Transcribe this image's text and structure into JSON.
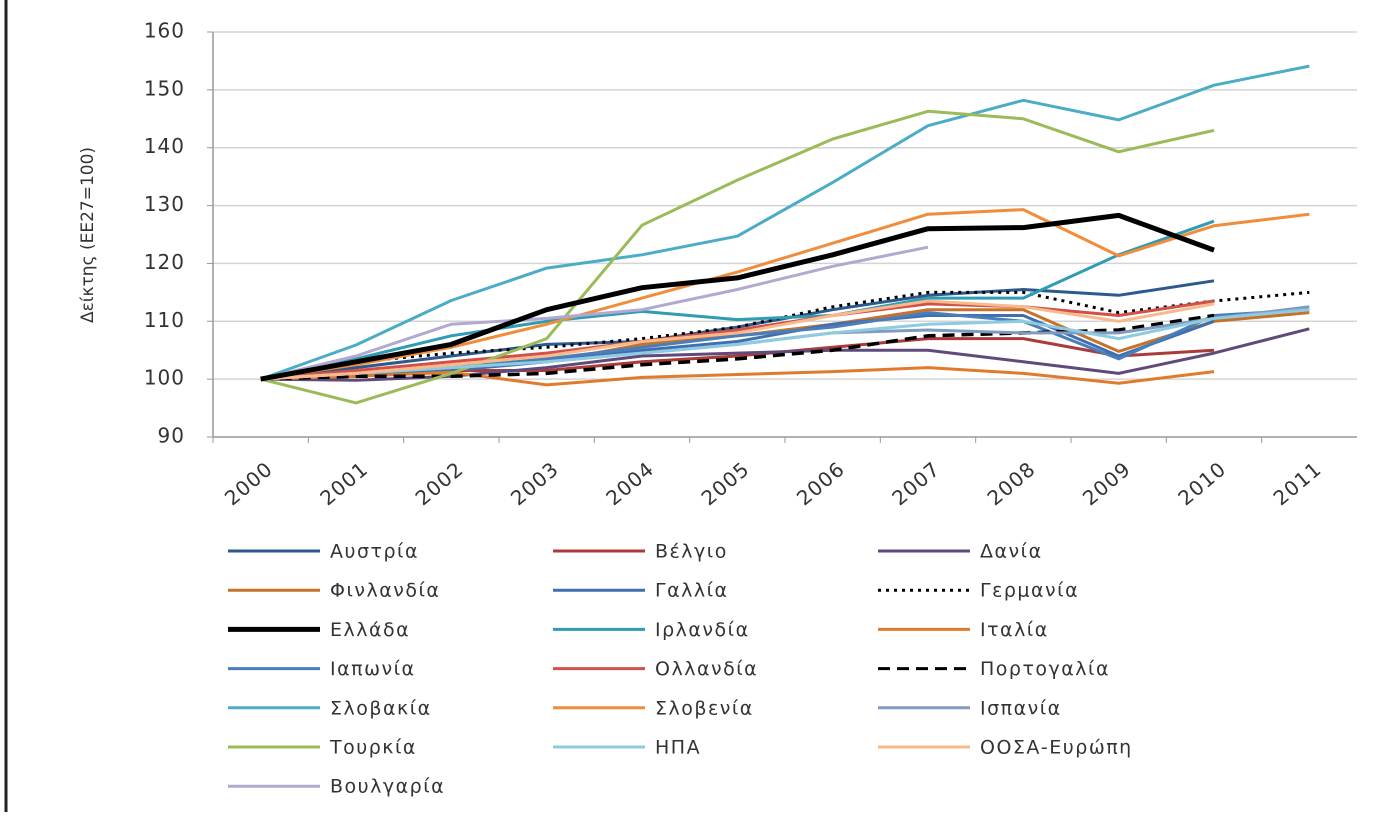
{
  "chart_data": {
    "type": "line",
    "y_label": "Δείκτης (ΕΕ27=100)",
    "categories": [
      "2000",
      "2001",
      "2002",
      "2003",
      "2004",
      "2005",
      "2006",
      "2007",
      "2008",
      "2009",
      "2010",
      "2011"
    ],
    "ylim": [
      90,
      160
    ],
    "yticks": [
      90,
      100,
      110,
      120,
      130,
      140,
      150,
      160
    ],
    "series": [
      {
        "name": "Αυστρία",
        "color": "#2c5a8c",
        "values": [
          100,
          102,
          104,
          106,
          106.5,
          109,
          112,
          114.5,
          115.5,
          114.5,
          117,
          null
        ]
      },
      {
        "name": "Βέλγιο",
        "color": "#a93b38",
        "values": [
          100,
          101,
          101.5,
          101.5,
          103,
          104,
          105.5,
          107,
          107,
          104,
          105,
          null
        ]
      },
      {
        "name": "Δανία",
        "color": "#5f4a7b",
        "values": [
          100,
          99.8,
          100.5,
          102,
          104,
          104.5,
          105,
          105,
          103,
          101,
          104.5,
          108.7
        ]
      },
      {
        "name": "Φινλανδία",
        "color": "#c6722a",
        "values": [
          100,
          101,
          102,
          103,
          106,
          107.5,
          109.5,
          112,
          112,
          104.8,
          110,
          111.5
        ]
      },
      {
        "name": "Γαλλία",
        "color": "#3f6fb0",
        "values": [
          100,
          100.5,
          101.5,
          103,
          105,
          106.5,
          109.5,
          111,
          111,
          104,
          110,
          null
        ]
      },
      {
        "name": "Γερμανία",
        "color": "#000000",
        "style": "dotted",
        "values": [
          100,
          103,
          104.5,
          105.5,
          107,
          109,
          112.5,
          115,
          115,
          111.5,
          113.5,
          115
        ]
      },
      {
        "name": "Ελλάδα",
        "color": "#000000",
        "style": "bold",
        "values": [
          100,
          103,
          106,
          112,
          115.8,
          117.5,
          121.5,
          126,
          126.2,
          128.3,
          122.3,
          null
        ]
      },
      {
        "name": "Ιρλανδία",
        "color": "#2f9cb4",
        "values": [
          100,
          103.5,
          107.5,
          110,
          111.7,
          110.3,
          111,
          114,
          114,
          121.5,
          127.3,
          null
        ]
      },
      {
        "name": "Ιταλία",
        "color": "#e07b2e",
        "values": [
          100,
          100.5,
          101.2,
          99,
          100.3,
          100.8,
          101.3,
          102,
          101,
          99.3,
          101.3,
          null
        ]
      },
      {
        "name": "Ιαπωνία",
        "color": "#4a7ebb",
        "values": [
          100,
          101,
          102,
          103.5,
          105.5,
          107.5,
          109,
          111.5,
          110,
          103.5,
          111,
          112
        ]
      },
      {
        "name": "Ολλανδία",
        "color": "#d0504a",
        "values": [
          100,
          101.5,
          103,
          104.5,
          106.5,
          108.5,
          111,
          113,
          112.5,
          111,
          113.5,
          null
        ]
      },
      {
        "name": "Πορτογαλία",
        "color": "#000000",
        "style": "dashed",
        "values": [
          100,
          100.5,
          100.5,
          101,
          102.5,
          103.5,
          105,
          107.5,
          108,
          108.5,
          111,
          null
        ]
      },
      {
        "name": "Σλοβακία",
        "color": "#4bacc6",
        "values": [
          100,
          105.9,
          113.6,
          119.2,
          121.5,
          124.7,
          134,
          143.8,
          148.2,
          144.8,
          150.8,
          154.1
        ]
      },
      {
        "name": "Σλοβενία",
        "color": "#f08c3a",
        "values": [
          100,
          102.5,
          105.5,
          109.5,
          114,
          118.5,
          123.5,
          128.5,
          129.3,
          121.3,
          126.5,
          128.5
        ]
      },
      {
        "name": "Ισπανία",
        "color": "#7f9cc0",
        "values": [
          100,
          101,
          102,
          103,
          104.5,
          106,
          108,
          108.5,
          108,
          108,
          110.5,
          112.5
        ]
      },
      {
        "name": "Τουρκία",
        "color": "#9bbb59",
        "values": [
          100,
          95.9,
          101,
          107,
          126.6,
          134.4,
          141.5,
          146.3,
          145,
          139.3,
          143,
          null
        ]
      },
      {
        "name": "ΗΠΑ",
        "color": "#8fcbe0",
        "values": [
          100,
          101,
          102,
          103,
          104.5,
          106,
          108,
          109.5,
          110,
          107,
          110.5,
          112
        ]
      },
      {
        "name": "ΟΟΣΑ-Ευρώπη",
        "color": "#f9b98a",
        "values": [
          100,
          101,
          102.5,
          104,
          106.5,
          108,
          111,
          113.5,
          112.5,
          110,
          113,
          null
        ]
      },
      {
        "name": "Βουλγαρία",
        "color": "#b3a8d0",
        "values": [
          100,
          104,
          109.5,
          110.5,
          112,
          115.5,
          119.5,
          122.8,
          null,
          null,
          null,
          null
        ]
      }
    ]
  }
}
